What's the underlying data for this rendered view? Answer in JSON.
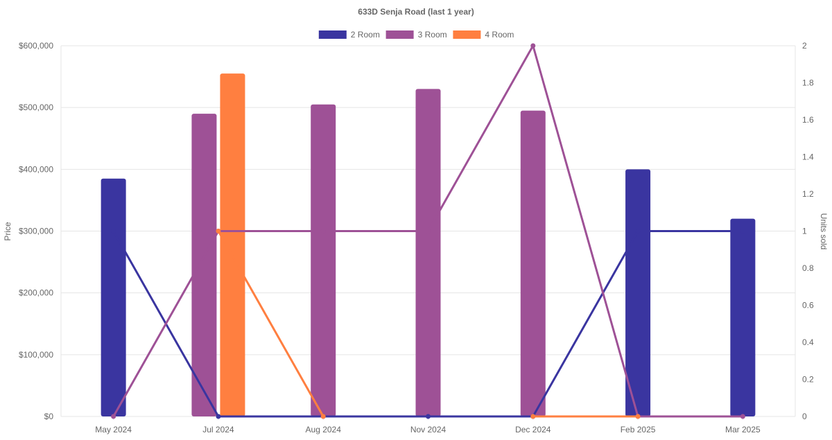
{
  "chart_data": {
    "type": "bar",
    "title": "633D Senja Road (last 1 year)",
    "categories": [
      "May 2024",
      "Jul 2024",
      "Aug 2024",
      "Nov 2024",
      "Dec 2024",
      "Feb 2025",
      "Mar 2025"
    ],
    "y_left": {
      "label": "Price",
      "ylim": [
        0,
        600000
      ],
      "ticks": [
        "$0",
        "$100,000",
        "$200,000",
        "$300,000",
        "$400,000",
        "$500,000",
        "$600,000"
      ],
      "tick_values": [
        0,
        100000,
        200000,
        300000,
        400000,
        500000,
        600000
      ]
    },
    "y_right": {
      "label": "Units sold",
      "ylim": [
        0,
        2
      ],
      "ticks": [
        "0",
        "0.2",
        "0.4",
        "0.6",
        "0.8",
        "1",
        "1.2",
        "1.4",
        "1.6",
        "1.8",
        "2"
      ],
      "tick_values": [
        0,
        0.2,
        0.4,
        0.6,
        0.8,
        1,
        1.2,
        1.4,
        1.6,
        1.8,
        2
      ]
    },
    "legend_position": "top-center",
    "grid": true,
    "series": [
      {
        "name": "2 Room",
        "color": "#3a35a0",
        "price": [
          385000,
          null,
          null,
          null,
          null,
          400000,
          320000
        ],
        "units_sold": [
          1,
          0,
          0,
          0,
          0,
          1,
          1
        ]
      },
      {
        "name": "3 Room",
        "color": "#9e5196",
        "price": [
          null,
          490000,
          505000,
          530000,
          495000,
          null,
          null
        ],
        "units_sold": [
          0,
          1,
          1,
          1,
          2,
          0,
          0
        ]
      },
      {
        "name": "4 Room",
        "color": "#ff7f40",
        "price": [
          null,
          555000,
          null,
          null,
          null,
          null,
          null
        ],
        "units_sold": [
          null,
          1,
          0,
          null,
          0,
          0,
          null
        ]
      }
    ]
  }
}
